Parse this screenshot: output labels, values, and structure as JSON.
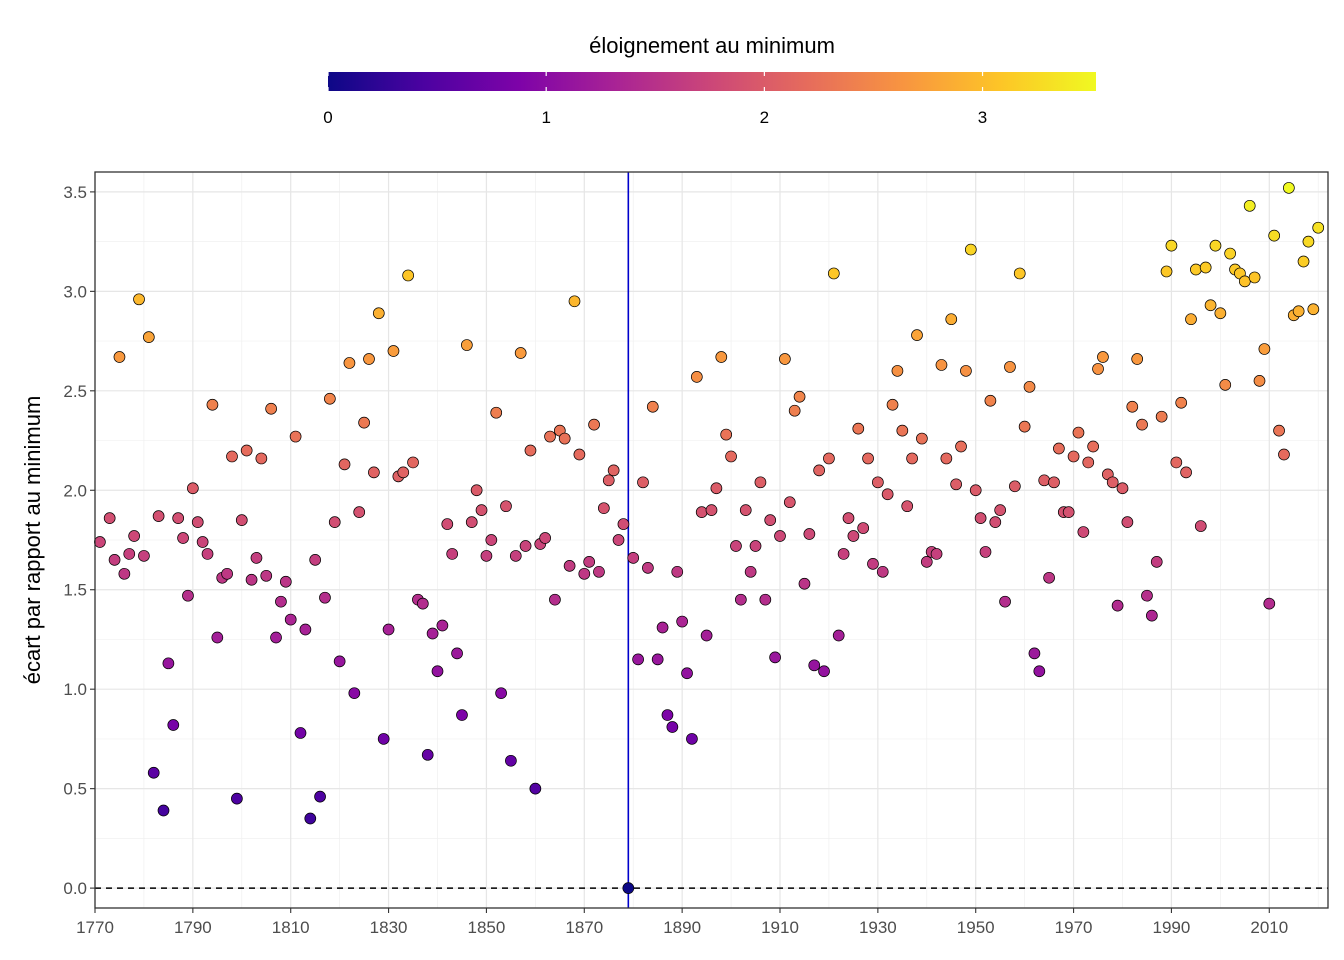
{
  "chart_data": {
    "type": "scatter",
    "title": "",
    "xlabel": "",
    "ylabel": "écart par rapport au minimum",
    "xlim": [
      1770,
      2022
    ],
    "ylim": [
      -0.1,
      3.6
    ],
    "x_ticks": [
      1770,
      1790,
      1810,
      1830,
      1850,
      1870,
      1890,
      1910,
      1930,
      1950,
      1970,
      1990,
      2010
    ],
    "x_tick_labels": [
      "1770",
      "1790",
      "1810",
      "1830",
      "1850",
      "1870",
      "1890",
      "1910",
      "1930",
      "1950",
      "1970",
      "1990",
      "2010"
    ],
    "y_ticks": [
      0,
      0.5,
      1,
      1.5,
      2,
      2.5,
      3,
      3.5
    ],
    "y_tick_labels": [
      "0.0",
      "0.5",
      "1.0",
      "1.5",
      "2.0",
      "2.5",
      "3.0",
      "3.5"
    ],
    "grid": true,
    "legend": {
      "title": "éloignement au minimum",
      "placement": "top",
      "min": 0,
      "max": 3.52,
      "ticks": [
        0,
        1,
        2,
        3
      ],
      "tick_labels": [
        "0",
        "1",
        "2",
        "3"
      ],
      "palette": "plasma"
    },
    "reference_lines": {
      "vertical_x": 1879,
      "vertical_color": "#0000cc",
      "horizontal_y": 0,
      "horizontal_style": "dashed"
    },
    "points": [
      [
        1771,
        1.74
      ],
      [
        1773,
        1.86
      ],
      [
        1774,
        1.65
      ],
      [
        1775,
        2.67
      ],
      [
        1776,
        1.58
      ],
      [
        1777,
        1.68
      ],
      [
        1778,
        1.77
      ],
      [
        1779,
        2.96
      ],
      [
        1780,
        1.67
      ],
      [
        1781,
        2.77
      ],
      [
        1782,
        0.58
      ],
      [
        1783,
        1.87
      ],
      [
        1784,
        0.39
      ],
      [
        1785,
        1.13
      ],
      [
        1786,
        0.82
      ],
      [
        1787,
        1.86
      ],
      [
        1788,
        1.76
      ],
      [
        1789,
        1.47
      ],
      [
        1790,
        2.01
      ],
      [
        1791,
        1.84
      ],
      [
        1792,
        1.74
      ],
      [
        1793,
        1.68
      ],
      [
        1794,
        2.43
      ],
      [
        1795,
        1.26
      ],
      [
        1796,
        1.56
      ],
      [
        1797,
        1.58
      ],
      [
        1798,
        2.17
      ],
      [
        1799,
        0.45
      ],
      [
        1800,
        1.85
      ],
      [
        1801,
        2.2
      ],
      [
        1802,
        1.55
      ],
      [
        1803,
        1.66
      ],
      [
        1804,
        2.16
      ],
      [
        1805,
        1.57
      ],
      [
        1806,
        2.41
      ],
      [
        1807,
        1.26
      ],
      [
        1808,
        1.44
      ],
      [
        1809,
        1.54
      ],
      [
        1810,
        1.35
      ],
      [
        1811,
        2.27
      ],
      [
        1812,
        0.78
      ],
      [
        1813,
        1.3
      ],
      [
        1814,
        0.35
      ],
      [
        1815,
        1.65
      ],
      [
        1816,
        0.46
      ],
      [
        1817,
        1.46
      ],
      [
        1818,
        2.46
      ],
      [
        1819,
        1.84
      ],
      [
        1820,
        1.14
      ],
      [
        1821,
        2.13
      ],
      [
        1822,
        2.64
      ],
      [
        1823,
        0.98
      ],
      [
        1824,
        1.89
      ],
      [
        1825,
        2.34
      ],
      [
        1826,
        2.66
      ],
      [
        1827,
        2.09
      ],
      [
        1828,
        2.89
      ],
      [
        1829,
        0.75
      ],
      [
        1830,
        1.3
      ],
      [
        1831,
        2.7
      ],
      [
        1832,
        2.07
      ],
      [
        1833,
        2.09
      ],
      [
        1834,
        3.08
      ],
      [
        1835,
        2.14
      ],
      [
        1836,
        1.45
      ],
      [
        1837,
        1.43
      ],
      [
        1838,
        0.67
      ],
      [
        1839,
        1.28
      ],
      [
        1840,
        1.09
      ],
      [
        1841,
        1.32
      ],
      [
        1842,
        1.83
      ],
      [
        1843,
        1.68
      ],
      [
        1844,
        1.18
      ],
      [
        1845,
        0.87
      ],
      [
        1846,
        2.73
      ],
      [
        1847,
        1.84
      ],
      [
        1848,
        2.0
      ],
      [
        1849,
        1.9
      ],
      [
        1850,
        1.67
      ],
      [
        1851,
        1.75
      ],
      [
        1852,
        2.39
      ],
      [
        1853,
        0.98
      ],
      [
        1854,
        1.92
      ],
      [
        1855,
        0.64
      ],
      [
        1856,
        1.67
      ],
      [
        1857,
        2.69
      ],
      [
        1858,
        1.72
      ],
      [
        1859,
        2.2
      ],
      [
        1860,
        0.5
      ],
      [
        1861,
        1.73
      ],
      [
        1862,
        1.76
      ],
      [
        1863,
        2.27
      ],
      [
        1864,
        1.45
      ],
      [
        1865,
        2.3
      ],
      [
        1866,
        2.26
      ],
      [
        1867,
        1.62
      ],
      [
        1868,
        2.95
      ],
      [
        1869,
        2.18
      ],
      [
        1870,
        1.58
      ],
      [
        1871,
        1.64
      ],
      [
        1872,
        2.33
      ],
      [
        1873,
        1.59
      ],
      [
        1874,
        1.91
      ],
      [
        1875,
        2.05
      ],
      [
        1876,
        2.1
      ],
      [
        1877,
        1.75
      ],
      [
        1878,
        1.83
      ],
      [
        1879,
        0.0
      ],
      [
        1880,
        1.66
      ],
      [
        1881,
        1.15
      ],
      [
        1882,
        2.04
      ],
      [
        1883,
        1.61
      ],
      [
        1884,
        2.42
      ],
      [
        1885,
        1.15
      ],
      [
        1886,
        1.31
      ],
      [
        1887,
        0.87
      ],
      [
        1888,
        0.81
      ],
      [
        1889,
        1.59
      ],
      [
        1890,
        1.34
      ],
      [
        1891,
        1.08
      ],
      [
        1892,
        0.75
      ],
      [
        1893,
        2.57
      ],
      [
        1894,
        1.89
      ],
      [
        1895,
        1.27
      ],
      [
        1896,
        1.9
      ],
      [
        1897,
        2.01
      ],
      [
        1898,
        2.67
      ],
      [
        1899,
        2.28
      ],
      [
        1900,
        2.17
      ],
      [
        1901,
        1.72
      ],
      [
        1902,
        1.45
      ],
      [
        1903,
        1.9
      ],
      [
        1904,
        1.59
      ],
      [
        1905,
        1.72
      ],
      [
        1906,
        2.04
      ],
      [
        1907,
        1.45
      ],
      [
        1908,
        1.85
      ],
      [
        1909,
        1.16
      ],
      [
        1910,
        1.77
      ],
      [
        1911,
        2.66
      ],
      [
        1912,
        1.94
      ],
      [
        1913,
        2.4
      ],
      [
        1914,
        2.47
      ],
      [
        1915,
        1.53
      ],
      [
        1916,
        1.78
      ],
      [
        1917,
        1.12
      ],
      [
        1918,
        2.1
      ],
      [
        1919,
        1.09
      ],
      [
        1920,
        2.16
      ],
      [
        1921,
        3.09
      ],
      [
        1922,
        1.27
      ],
      [
        1923,
        1.68
      ],
      [
        1924,
        1.86
      ],
      [
        1925,
        1.77
      ],
      [
        1926,
        2.31
      ],
      [
        1927,
        1.81
      ],
      [
        1928,
        2.16
      ],
      [
        1929,
        1.63
      ],
      [
        1930,
        2.04
      ],
      [
        1931,
        1.59
      ],
      [
        1932,
        1.98
      ],
      [
        1933,
        2.43
      ],
      [
        1934,
        2.6
      ],
      [
        1935,
        2.3
      ],
      [
        1936,
        1.92
      ],
      [
        1937,
        2.16
      ],
      [
        1938,
        2.78
      ],
      [
        1939,
        2.26
      ],
      [
        1940,
        1.64
      ],
      [
        1941,
        1.69
      ],
      [
        1942,
        1.68
      ],
      [
        1943,
        2.63
      ],
      [
        1944,
        2.16
      ],
      [
        1945,
        2.86
      ],
      [
        1946,
        2.03
      ],
      [
        1947,
        2.22
      ],
      [
        1948,
        2.6
      ],
      [
        1949,
        3.21
      ],
      [
        1950,
        2.0
      ],
      [
        1951,
        1.86
      ],
      [
        1952,
        1.69
      ],
      [
        1953,
        2.45
      ],
      [
        1954,
        1.84
      ],
      [
        1955,
        1.9
      ],
      [
        1956,
        1.44
      ],
      [
        1957,
        2.62
      ],
      [
        1958,
        2.02
      ],
      [
        1959,
        3.09
      ],
      [
        1960,
        2.32
      ],
      [
        1961,
        2.52
      ],
      [
        1962,
        1.18
      ],
      [
        1963,
        1.09
      ],
      [
        1964,
        2.05
      ],
      [
        1965,
        1.56
      ],
      [
        1966,
        2.04
      ],
      [
        1967,
        2.21
      ],
      [
        1968,
        1.89
      ],
      [
        1969,
        1.89
      ],
      [
        1970,
        2.17
      ],
      [
        1971,
        2.29
      ],
      [
        1972,
        1.79
      ],
      [
        1973,
        2.14
      ],
      [
        1974,
        2.22
      ],
      [
        1975,
        2.61
      ],
      [
        1976,
        2.67
      ],
      [
        1977,
        2.08
      ],
      [
        1978,
        2.04
      ],
      [
        1979,
        1.42
      ],
      [
        1980,
        2.01
      ],
      [
        1981,
        1.84
      ],
      [
        1982,
        2.42
      ],
      [
        1983,
        2.66
      ],
      [
        1984,
        2.33
      ],
      [
        1985,
        1.47
      ],
      [
        1986,
        1.37
      ],
      [
        1987,
        1.64
      ],
      [
        1988,
        2.37
      ],
      [
        1989,
        3.1
      ],
      [
        1990,
        3.23
      ],
      [
        1991,
        2.14
      ],
      [
        1992,
        2.44
      ],
      [
        1993,
        2.09
      ],
      [
        1994,
        2.86
      ],
      [
        1995,
        3.11
      ],
      [
        1996,
        1.82
      ],
      [
        1997,
        3.12
      ],
      [
        1998,
        2.93
      ],
      [
        1999,
        3.23
      ],
      [
        2000,
        2.89
      ],
      [
        2001,
        2.53
      ],
      [
        2002,
        3.19
      ],
      [
        2003,
        3.11
      ],
      [
        2004,
        3.09
      ],
      [
        2005,
        3.05
      ],
      [
        2006,
        3.43
      ],
      [
        2007,
        3.07
      ],
      [
        2008,
        2.55
      ],
      [
        2009,
        2.71
      ],
      [
        2010,
        1.43
      ],
      [
        2011,
        3.28
      ],
      [
        2012,
        2.3
      ],
      [
        2013,
        2.18
      ],
      [
        2014,
        3.52
      ],
      [
        2015,
        2.88
      ],
      [
        2016,
        2.9
      ],
      [
        2017,
        3.15
      ],
      [
        2018,
        3.25
      ],
      [
        2019,
        2.91
      ],
      [
        2020,
        3.32
      ]
    ]
  }
}
